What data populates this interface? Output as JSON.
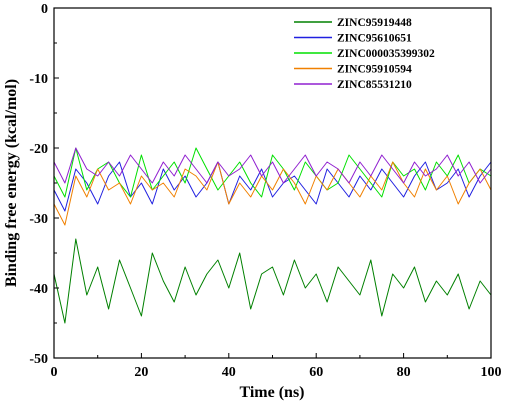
{
  "chart_data": {
    "type": "line",
    "title": "",
    "xlabel": "Time (ns)",
    "ylabel": "Binding free energy (kcal/mol)",
    "xlim": [
      0,
      100
    ],
    "ylim": [
      -50,
      0
    ],
    "x_ticks": [
      "0",
      "20",
      "40",
      "60",
      "80",
      "100"
    ],
    "y_ticks": [
      "0",
      "-10",
      "-20",
      "-30",
      "-40",
      "-50"
    ],
    "grid": false,
    "legend_position": "top-right",
    "x": [
      0,
      2.5,
      5,
      7.5,
      10,
      12.5,
      15,
      17.5,
      20,
      22.5,
      25,
      27.5,
      30,
      32.5,
      35,
      37.5,
      40,
      42.5,
      45,
      47.5,
      50,
      52.5,
      55,
      57.5,
      60,
      62.5,
      65,
      67.5,
      70,
      72.5,
      75,
      77.5,
      80,
      82.5,
      85,
      87.5,
      90,
      92.5,
      95,
      97.5,
      100
    ],
    "series": [
      {
        "name": "ZINC95919448",
        "color": "#008000",
        "values": [
          -38,
          -45,
          -33,
          -41,
          -37,
          -43,
          -36,
          -40,
          -44,
          -35,
          -39,
          -42,
          -37,
          -41,
          -38,
          -36,
          -40,
          -35,
          -43,
          -38,
          -37,
          -41,
          -36,
          -40,
          -38,
          -42,
          -37,
          -39,
          -41,
          -36,
          -44,
          -38,
          -40,
          -37,
          -42,
          -39,
          -41,
          -38,
          -43,
          -39,
          -41
        ]
      },
      {
        "name": "ZINC95610651",
        "color": "#2020e0",
        "values": [
          -26,
          -29,
          -23,
          -25,
          -28,
          -24,
          -22,
          -27,
          -25,
          -28,
          -23,
          -26,
          -24,
          -27,
          -25,
          -22,
          -28,
          -24,
          -26,
          -23,
          -27,
          -25,
          -24,
          -26,
          -28,
          -23,
          -25,
          -27,
          -24,
          -26,
          -23,
          -25,
          -27,
          -24,
          -22,
          -26,
          -25,
          -23,
          -27,
          -24,
          -22
        ]
      },
      {
        "name": "ZINC000035399302",
        "color": "#00e000",
        "values": [
          -24,
          -27,
          -20,
          -26,
          -23,
          -22,
          -25,
          -27,
          -21,
          -26,
          -24,
          -22,
          -25,
          -20,
          -23,
          -26,
          -24,
          -22,
          -25,
          -27,
          -21,
          -23,
          -26,
          -22,
          -24,
          -26,
          -25,
          -21,
          -23,
          -25,
          -27,
          -22,
          -24,
          -23,
          -26,
          -22,
          -24,
          -21,
          -25,
          -23,
          -24
        ]
      },
      {
        "name": "ZINC95910594",
        "color": "#f08000",
        "values": [
          -28,
          -31,
          -24,
          -27,
          -23,
          -26,
          -25,
          -28,
          -24,
          -26,
          -25,
          -27,
          -23,
          -24,
          -26,
          -22,
          -28,
          -25,
          -27,
          -24,
          -26,
          -23,
          -25,
          -28,
          -24,
          -26,
          -23,
          -25,
          -27,
          -24,
          -26,
          -22,
          -25,
          -27,
          -23,
          -26,
          -24,
          -28,
          -25,
          -23,
          -26
        ]
      },
      {
        "name": "ZINC85531210",
        "color": "#9020d0",
        "values": [
          -22,
          -25,
          -20,
          -23,
          -24,
          -22,
          -24,
          -21,
          -23,
          -25,
          -22,
          -24,
          -21,
          -23,
          -25,
          -22,
          -24,
          -23,
          -21,
          -24,
          -22,
          -25,
          -23,
          -21,
          -24,
          -22,
          -23,
          -25,
          -22,
          -24,
          -21,
          -23,
          -25,
          -22,
          -24,
          -23,
          -21,
          -24,
          -22,
          -25,
          -23
        ]
      }
    ]
  }
}
